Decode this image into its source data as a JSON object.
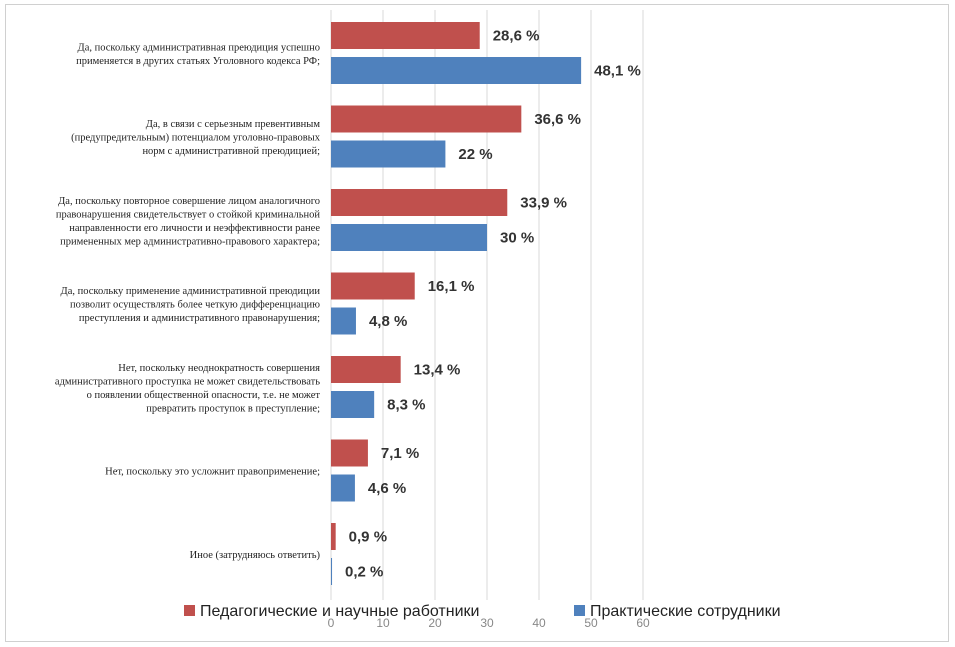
{
  "chart_data": {
    "type": "bar",
    "orientation": "horizontal",
    "categories": [
      [
        "Да, поскольку административная преюдиция успешно",
        "применяется в других статьях Уголовного кодекса РФ;"
      ],
      [
        "Да, в связи с серьезным превентивным",
        "(предупредительным) потенциалом уголовно-правовых",
        "норм с административной преюдицией;"
      ],
      [
        "Да, поскольку повторное совершение лицом аналогичного",
        "правонарушения свидетельствует о стойкой криминальной",
        "направленности его личности и неэффективности ранее",
        "примененных мер административно-правового характера;"
      ],
      [
        "Да, поскольку применение административной преюдиции",
        "позволит осуществлять более четкую дифференциацию",
        "преступления и административного правонарушения;"
      ],
      [
        "Нет, поскольку неоднократность совершения",
        "административного проступка не может свидетельствовать",
        "о появлении общественной опасности, т.е. не может",
        "превратить проступок в преступление;"
      ],
      [
        "Нет, поскольку это усложнит правоприменение;"
      ],
      [
        "Иное (затрудняюсь ответить)"
      ]
    ],
    "series": [
      {
        "name": "Педагогические и научные работники",
        "color": "#c0504d",
        "values": [
          28.6,
          36.6,
          33.9,
          16.1,
          13.4,
          7.1,
          0.9
        ],
        "labels": [
          "28,6 %",
          "36,6 %",
          "33,9 %",
          "16,1 %",
          "13,4 %",
          "7,1 %",
          "0,9 %"
        ]
      },
      {
        "name": "Практические сотрудники",
        "color": "#4f81bd",
        "values": [
          48.1,
          22,
          30,
          4.8,
          8.3,
          4.6,
          0.2
        ],
        "labels": [
          "48,1 %",
          "22 %",
          "30 %",
          "4,8 %",
          "8,3 %",
          "4,6 %",
          "0,2 %"
        ]
      }
    ],
    "xlim": [
      0,
      60
    ],
    "xticks": [
      0,
      10,
      20,
      30,
      40,
      50,
      60
    ],
    "xtick_labels": [
      "0",
      "10",
      "20",
      "30",
      "40",
      "50",
      "60"
    ],
    "grid": true,
    "legend_position": "bottom"
  }
}
